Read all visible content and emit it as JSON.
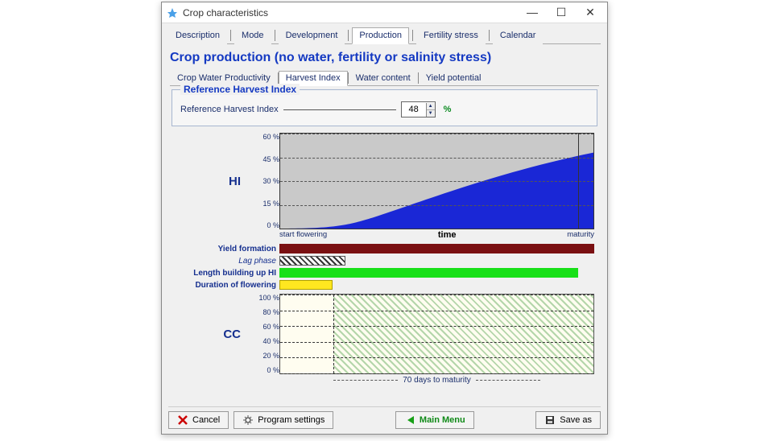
{
  "window": {
    "title": "Crop characteristics"
  },
  "tabs": {
    "items": [
      "Description",
      "Mode",
      "Development",
      "Production",
      "Fertility stress",
      "Calendar"
    ],
    "active": "Production"
  },
  "heading": "Crop production (no water, fertility or salinity stress)",
  "subtabs": {
    "items": [
      "Crop Water Productivity",
      "Harvest Index",
      "Water content",
      "Yield potential"
    ],
    "active": "Harvest Index"
  },
  "refbox": {
    "legend": "Reference Harvest Index",
    "label": "Reference Harvest Index",
    "value": "48",
    "unit": "%"
  },
  "hi_chart": {
    "label": "HI",
    "yticks": [
      "60 %",
      "45 %",
      "30 %",
      "15 %",
      "0 %"
    ],
    "y_max": 60,
    "grid_levels_pct_from_top": [
      0,
      25,
      50,
      75
    ],
    "xaxis_left": "start flowering",
    "xaxis_center": "time",
    "xaxis_right": "maturity",
    "area_color": "#1a27d6",
    "bg_color": "#c9c9c9"
  },
  "bars": {
    "yield_formation": {
      "label": "Yield formation",
      "start_pct": 0,
      "width_pct": 100,
      "color": "#7a1012"
    },
    "lag_phase": {
      "label": "Lag phase",
      "start_pct": 0,
      "width_pct": 21
    },
    "length_building": {
      "label": "Length building up HI",
      "start_pct": 0,
      "width_pct": 95,
      "color": "#18e018"
    },
    "duration_flowering": {
      "label": "Duration of flowering",
      "start_pct": 0,
      "width_pct": 17,
      "color": "#ffe720"
    }
  },
  "cc_chart": {
    "label": "CC",
    "yticks": [
      "100 %",
      "80 %",
      "60 %",
      "40 %",
      "20 %",
      "0 %"
    ],
    "hatch_start_pct": 17,
    "hatch_width_pct": 83,
    "vline_pct": 17,
    "grid_levels_pct_from_top": [
      0,
      20,
      40,
      60,
      80,
      100
    ],
    "bottom_label": "70 days to maturity"
  },
  "footer": {
    "cancel": "Cancel",
    "program_settings": "Program settings",
    "main_menu": "Main Menu",
    "save_as": "Save as"
  },
  "colors": {
    "heading": "#1439c2",
    "axis_text": "#1a2e6b",
    "green_text": "#108a18"
  }
}
